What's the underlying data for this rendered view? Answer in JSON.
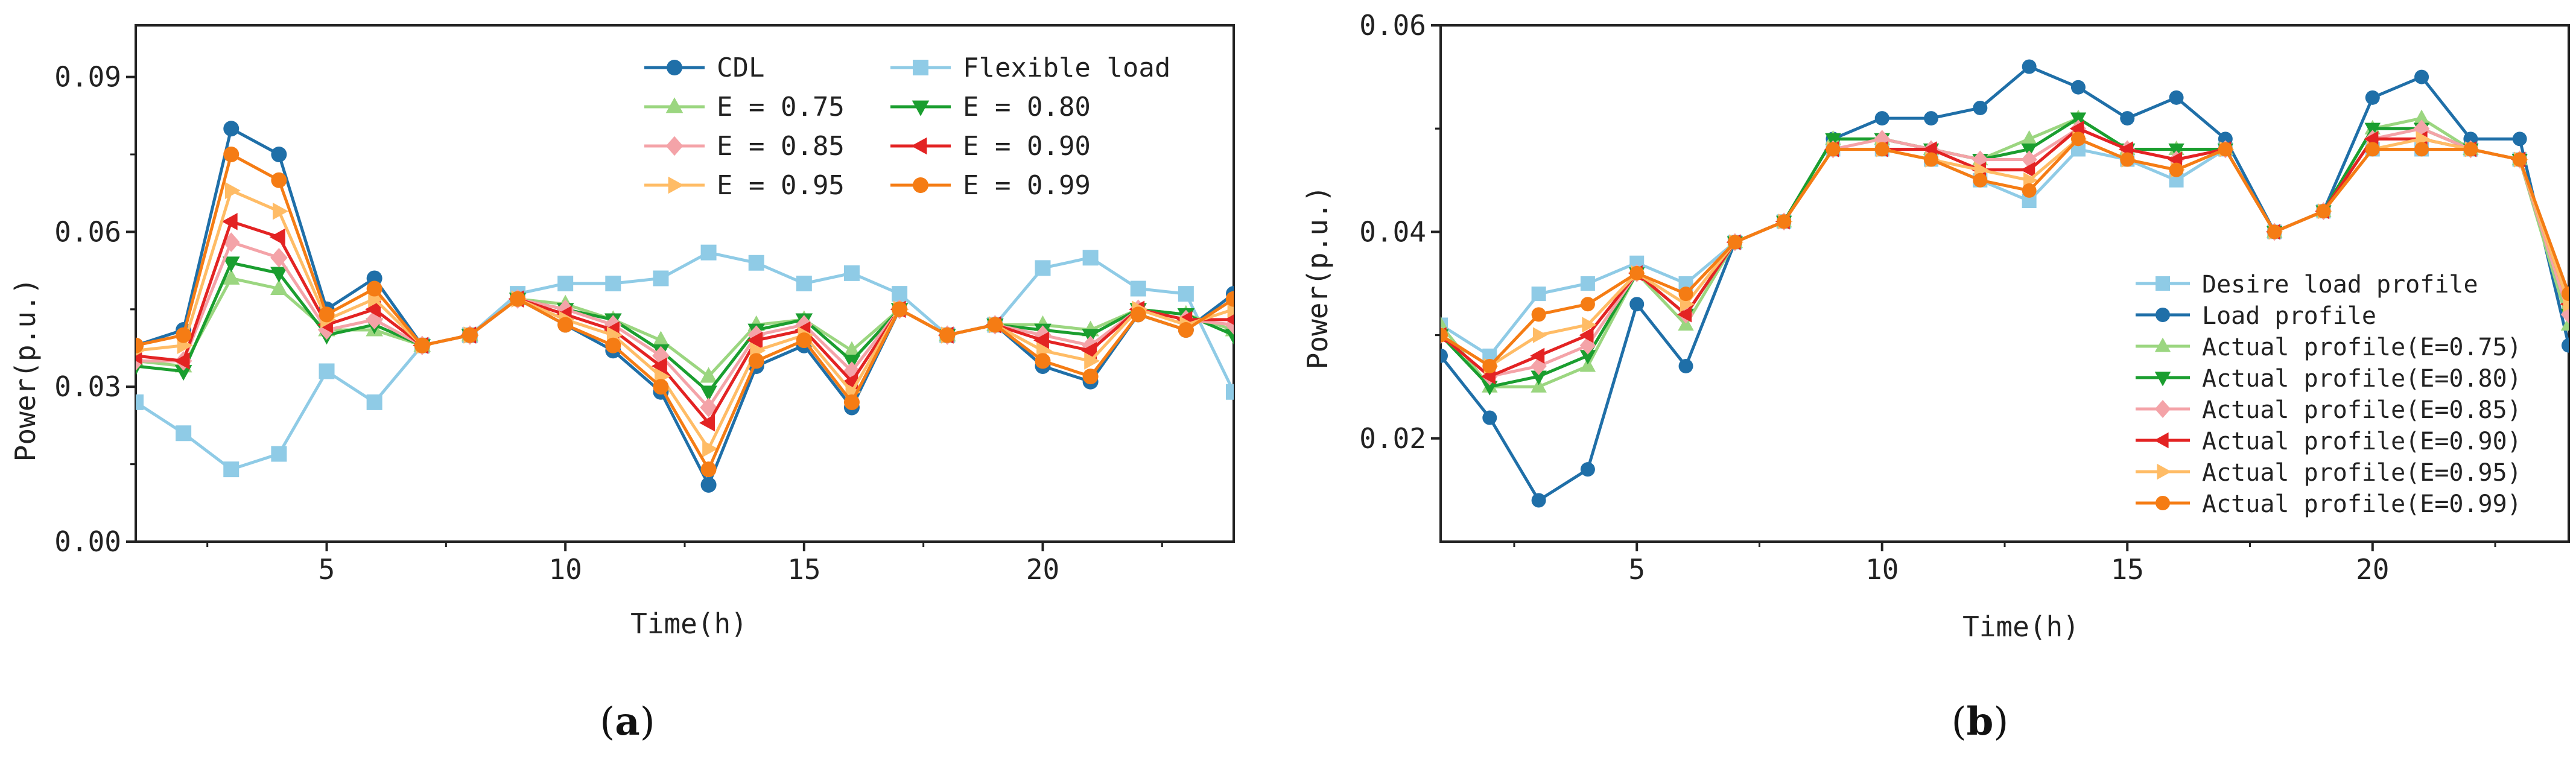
{
  "chart_data": [
    {
      "type": "line",
      "panel": "(a)",
      "panel_letter": "a",
      "xlabel": "Time(h)",
      "ylabel": "Power(p.u.)",
      "xlim": [
        1,
        24
      ],
      "ylim": [
        0,
        0.1
      ],
      "xticks": [
        "5",
        "10",
        "15",
        "20"
      ],
      "yticks": [
        "0.00",
        "0.03",
        "0.06",
        "0.09"
      ],
      "x": [
        1,
        2,
        3,
        4,
        5,
        6,
        7,
        8,
        9,
        10,
        11,
        12,
        13,
        14,
        15,
        16,
        17,
        18,
        19,
        20,
        21,
        22,
        23,
        24
      ],
      "series": [
        {
          "name": "CDL",
          "color": "#1f6fa8",
          "marker": "circle",
          "values": [
            0.038,
            0.041,
            0.08,
            0.075,
            0.045,
            0.051,
            0.038,
            0.04,
            0.047,
            0.042,
            0.037,
            0.029,
            0.011,
            0.034,
            0.038,
            0.026,
            0.045,
            0.04,
            0.042,
            0.034,
            0.031,
            0.044,
            0.041,
            0.048
          ]
        },
        {
          "name": "Flexible load",
          "color": "#8fcbe6",
          "marker": "square",
          "values": [
            0.027,
            0.021,
            0.014,
            0.017,
            0.033,
            0.027,
            0.038,
            0.04,
            0.048,
            0.05,
            0.05,
            0.051,
            0.056,
            0.054,
            0.05,
            0.052,
            0.048,
            0.04,
            0.042,
            0.053,
            0.055,
            0.049,
            0.048,
            0.029
          ]
        },
        {
          "name": "E = 0.75",
          "color": "#9bd680",
          "marker": "triangle-up",
          "values": [
            0.035,
            0.034,
            0.051,
            0.049,
            0.041,
            0.041,
            0.038,
            0.04,
            0.047,
            0.046,
            0.043,
            0.039,
            0.032,
            0.042,
            0.043,
            0.037,
            0.045,
            0.04,
            0.042,
            0.042,
            0.041,
            0.045,
            0.044,
            0.041
          ]
        },
        {
          "name": "E = 0.80",
          "color": "#1a9e2f",
          "marker": "triangle-down",
          "values": [
            0.034,
            0.033,
            0.054,
            0.052,
            0.04,
            0.042,
            0.038,
            0.04,
            0.047,
            0.045,
            0.043,
            0.037,
            0.029,
            0.041,
            0.043,
            0.035,
            0.045,
            0.04,
            0.042,
            0.041,
            0.04,
            0.045,
            0.044,
            0.04
          ]
        },
        {
          "name": "E = 0.85",
          "color": "#f4a3a8",
          "marker": "diamond",
          "values": [
            0.035,
            0.035,
            0.058,
            0.055,
            0.041,
            0.043,
            0.038,
            0.04,
            0.047,
            0.045,
            0.042,
            0.036,
            0.026,
            0.04,
            0.042,
            0.033,
            0.045,
            0.04,
            0.042,
            0.04,
            0.038,
            0.045,
            0.043,
            0.042
          ]
        },
        {
          "name": "E = 0.90",
          "color": "#e32323",
          "marker": "triangle-left",
          "values": [
            0.036,
            0.035,
            0.062,
            0.059,
            0.042,
            0.045,
            0.038,
            0.04,
            0.047,
            0.044,
            0.041,
            0.034,
            0.023,
            0.039,
            0.041,
            0.031,
            0.045,
            0.04,
            0.042,
            0.039,
            0.037,
            0.045,
            0.043,
            0.043
          ]
        },
        {
          "name": "E = 0.95",
          "color": "#ffbc66",
          "marker": "triangle-right",
          "values": [
            0.037,
            0.038,
            0.068,
            0.064,
            0.043,
            0.047,
            0.038,
            0.04,
            0.047,
            0.043,
            0.04,
            0.032,
            0.018,
            0.037,
            0.04,
            0.029,
            0.045,
            0.04,
            0.042,
            0.037,
            0.035,
            0.045,
            0.042,
            0.045
          ]
        },
        {
          "name": "E = 0.99",
          "color": "#f57c14",
          "marker": "circle",
          "values": [
            0.038,
            0.04,
            0.075,
            0.07,
            0.044,
            0.049,
            0.038,
            0.04,
            0.047,
            0.042,
            0.038,
            0.03,
            0.014,
            0.035,
            0.039,
            0.027,
            0.045,
            0.04,
            0.042,
            0.035,
            0.032,
            0.044,
            0.041,
            0.047
          ]
        }
      ],
      "legend_position": "top-right"
    },
    {
      "type": "line",
      "panel": "(b)",
      "panel_letter": "b",
      "xlabel": "Time(h)",
      "ylabel": "Power(p.u.)",
      "xlim": [
        1,
        24
      ],
      "ylim": [
        0.01,
        0.06
      ],
      "xticks": [
        "5",
        "10",
        "15",
        "20"
      ],
      "yticks": [
        "0.02",
        "0.04",
        "0.06"
      ],
      "x": [
        1,
        2,
        3,
        4,
        5,
        6,
        7,
        8,
        9,
        10,
        11,
        12,
        13,
        14,
        15,
        16,
        17,
        18,
        19,
        20,
        21,
        22,
        23,
        24
      ],
      "series": [
        {
          "name": "Desire load profile",
          "color": "#8fcbe6",
          "marker": "square",
          "values": [
            0.031,
            0.028,
            0.034,
            0.035,
            0.037,
            0.035,
            0.039,
            0.041,
            0.048,
            0.048,
            0.047,
            0.045,
            0.043,
            0.048,
            0.047,
            0.045,
            0.048,
            0.04,
            0.042,
            0.048,
            0.048,
            0.048,
            0.047,
            0.034
          ]
        },
        {
          "name": "Load profile",
          "color": "#1f6fa8",
          "marker": "circle",
          "values": [
            0.028,
            0.022,
            0.014,
            0.017,
            0.033,
            0.027,
            0.039,
            0.041,
            0.049,
            0.051,
            0.051,
            0.052,
            0.056,
            0.054,
            0.051,
            0.053,
            0.049,
            0.04,
            0.042,
            0.053,
            0.055,
            0.049,
            0.049,
            0.029
          ]
        },
        {
          "name": "Actual profile(E=0.75)",
          "color": "#9bd680",
          "marker": "triangle-up",
          "values": [
            0.031,
            0.025,
            0.025,
            0.027,
            0.036,
            0.031,
            0.039,
            0.041,
            0.049,
            0.049,
            0.048,
            0.047,
            0.049,
            0.051,
            0.048,
            0.048,
            0.048,
            0.04,
            0.042,
            0.05,
            0.051,
            0.048,
            0.047,
            0.031
          ]
        },
        {
          "name": "Actual profile(E=0.80)",
          "color": "#1a9e2f",
          "marker": "triangle-down",
          "values": [
            0.03,
            0.025,
            0.026,
            0.028,
            0.036,
            0.032,
            0.039,
            0.041,
            0.049,
            0.049,
            0.048,
            0.047,
            0.048,
            0.051,
            0.048,
            0.048,
            0.048,
            0.04,
            0.042,
            0.05,
            0.05,
            0.048,
            0.047,
            0.032
          ]
        },
        {
          "name": "Actual profile(E=0.85)",
          "color": "#f4a3a8",
          "marker": "diamond",
          "values": [
            0.03,
            0.026,
            0.027,
            0.029,
            0.036,
            0.032,
            0.039,
            0.041,
            0.048,
            0.049,
            0.048,
            0.047,
            0.047,
            0.05,
            0.048,
            0.047,
            0.048,
            0.04,
            0.042,
            0.049,
            0.05,
            0.048,
            0.047,
            0.032
          ]
        },
        {
          "name": "Actual profile(E=0.90)",
          "color": "#e32323",
          "marker": "triangle-left",
          "values": [
            0.03,
            0.026,
            0.028,
            0.03,
            0.036,
            0.032,
            0.039,
            0.041,
            0.048,
            0.048,
            0.048,
            0.046,
            0.046,
            0.05,
            0.048,
            0.047,
            0.048,
            0.04,
            0.042,
            0.049,
            0.049,
            0.048,
            0.047,
            0.033
          ]
        },
        {
          "name": "Actual profile(E=0.95)",
          "color": "#ffbc66",
          "marker": "triangle-right",
          "values": [
            0.03,
            0.027,
            0.03,
            0.031,
            0.036,
            0.033,
            0.039,
            0.041,
            0.048,
            0.048,
            0.047,
            0.046,
            0.045,
            0.049,
            0.047,
            0.046,
            0.048,
            0.04,
            0.042,
            0.048,
            0.049,
            0.048,
            0.047,
            0.033
          ]
        },
        {
          "name": "Actual profile(E=0.99)",
          "color": "#f57c14",
          "marker": "circle",
          "values": [
            0.03,
            0.027,
            0.032,
            0.033,
            0.036,
            0.034,
            0.039,
            0.041,
            0.048,
            0.048,
            0.047,
            0.045,
            0.044,
            0.049,
            0.047,
            0.046,
            0.048,
            0.04,
            0.042,
            0.048,
            0.048,
            0.048,
            0.047,
            0.034
          ]
        }
      ],
      "legend_position": "bottom-right"
    }
  ]
}
